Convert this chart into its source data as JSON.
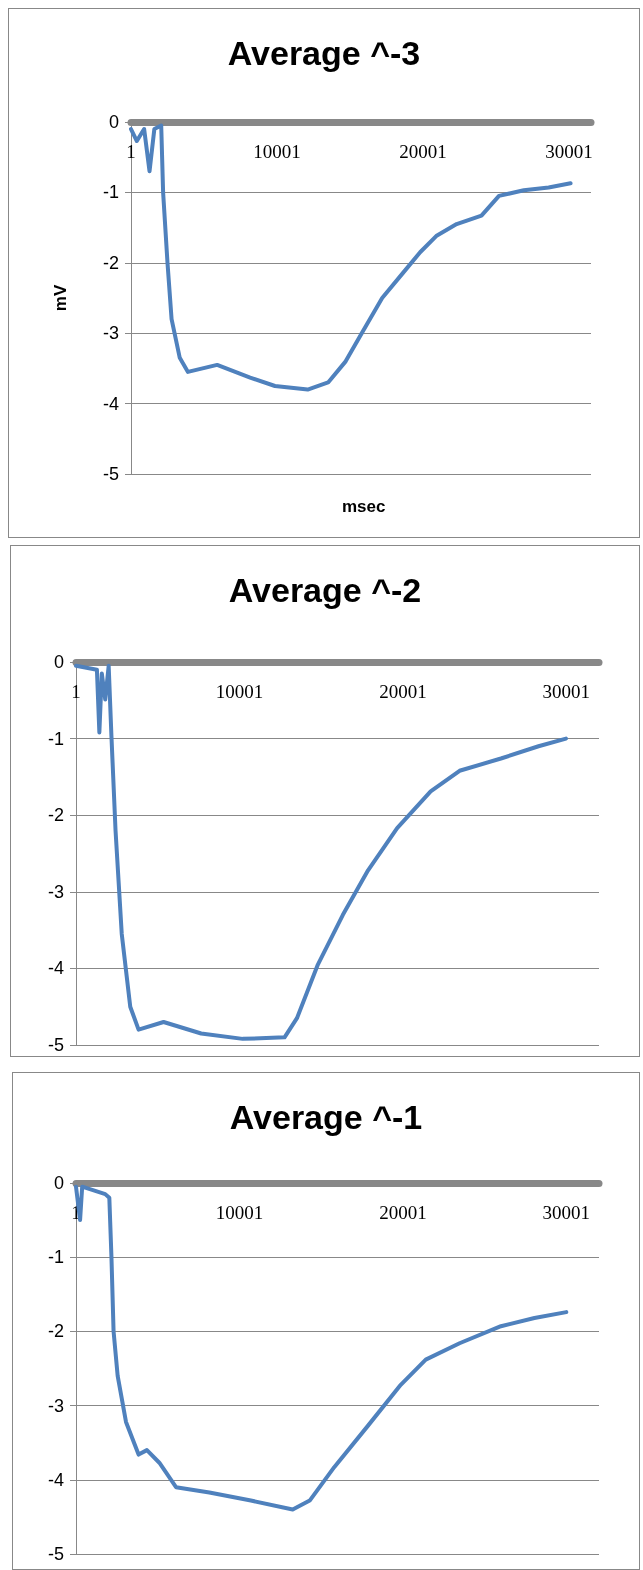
{
  "chart_data": [
    {
      "type": "line",
      "title": "Average ^-3",
      "xlabel": "msec",
      "ylabel": "mV",
      "xlim": [
        1,
        31500
      ],
      "ylim": [
        -5,
        0
      ],
      "xticks": [
        1,
        10001,
        20001,
        30001
      ],
      "yticks": [
        -5,
        -4,
        -3,
        -2,
        -1,
        0
      ],
      "grid": "y",
      "x": [
        1,
        400,
        900,
        1270,
        1600,
        2070,
        2200,
        2500,
        2780,
        3340,
        3900,
        5900,
        8160,
        9860,
        12100,
        13500,
        14700,
        15800,
        17200,
        18600,
        19800,
        20900,
        22300,
        24000,
        25200,
        26900,
        28600,
        30100
      ],
      "series": [
        {
          "color": "#4f81bd",
          "values": [
            -0.1,
            -0.27,
            -0.1,
            -0.7,
            -0.1,
            -0.05,
            -1,
            -2,
            -2.8,
            -3.35,
            -3.55,
            -3.45,
            -3.63,
            -3.75,
            -3.8,
            -3.7,
            -3.4,
            -3.0,
            -2.5,
            -2.15,
            -1.85,
            -1.62,
            -1.45,
            -1.33,
            -1.05,
            -0.97,
            -0.93,
            -0.87
          ]
        }
      ]
    },
    {
      "type": "line",
      "title": "Average ^-2",
      "xlim": [
        1,
        32000
      ],
      "ylim": [
        -5,
        0
      ],
      "xticks": [
        1,
        10001,
        20001,
        30001
      ],
      "yticks": [
        -5,
        -4,
        -3,
        -2,
        -1,
        0
      ],
      "grid": "y",
      "x": [
        1,
        1280,
        1430,
        1580,
        1790,
        2000,
        2170,
        2420,
        2800,
        3320,
        3830,
        5360,
        7660,
        10200,
        12760,
        13520,
        14800,
        16330,
        17870,
        19650,
        21700,
        23470,
        26000,
        28300,
        29980
      ],
      "series": [
        {
          "color": "#4f81bd",
          "values": [
            -0.05,
            -0.1,
            -0.92,
            -0.15,
            -0.49,
            -0.05,
            -0.97,
            -2.2,
            -3.55,
            -4.5,
            -4.8,
            -4.7,
            -4.85,
            -4.92,
            -4.9,
            -4.65,
            -3.95,
            -3.3,
            -2.72,
            -2.17,
            -1.69,
            -1.42,
            -1.26,
            -1.1,
            -1.0
          ]
        }
      ]
    },
    {
      "type": "line",
      "title": "Average ^-1",
      "xlim": [
        1,
        32000
      ],
      "ylim": [
        -5,
        0
      ],
      "xticks": [
        1,
        10001,
        20001,
        30001
      ],
      "yticks": [
        -5,
        -4,
        -3,
        -2,
        -1,
        0
      ],
      "grid": "y",
      "x": [
        1,
        250,
        380,
        1790,
        2040,
        2170,
        2300,
        2550,
        3060,
        3830,
        4340,
        5100,
        6120,
        8160,
        10700,
        13260,
        14300,
        15800,
        17870,
        19870,
        21400,
        23470,
        26000,
        28050,
        30000
      ],
      "series": [
        {
          "color": "#4f81bd",
          "values": [
            -0.05,
            -0.5,
            -0.05,
            -0.15,
            -0.2,
            -1,
            -2,
            -2.6,
            -3.22,
            -3.66,
            -3.6,
            -3.77,
            -4.1,
            -4.17,
            -4.28,
            -4.4,
            -4.28,
            -3.83,
            -3.27,
            -2.72,
            -2.38,
            -2.16,
            -1.93,
            -1.82,
            -1.74
          ]
        }
      ]
    }
  ]
}
